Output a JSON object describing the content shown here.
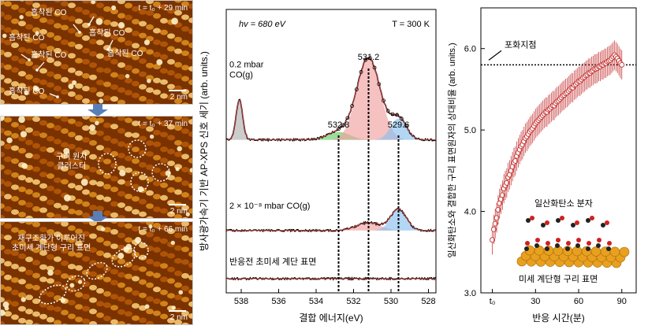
{
  "stm": {
    "panels": [
      {
        "time": "t = t₀ + 29 min",
        "scale": "2 nm",
        "labels": [
          "흡착된 CO",
          "흡착된 CO",
          "흡착된 CO",
          "흡착된 CO",
          "흡착된 CO",
          "흡착된 CO"
        ]
      },
      {
        "time": "t = t₀ + 37 min",
        "scale": "2 nm",
        "labels": [
          "구리 원자\n클러스터"
        ]
      },
      {
        "time": "t = t₀ + 66 min",
        "scale": "2 nm",
        "labels": [
          "재구조화가 이루어진\n초미세 계단형 구리 표면"
        ]
      }
    ]
  },
  "chart_data": [
    {
      "type": "line",
      "title": "",
      "xlabel": "결합 에너지(eV)",
      "ylabel": "방사광가속기 기반 AP-XPS 신호 세기 (arb. units.)",
      "xlim": [
        538.8,
        527.6
      ],
      "xticks": [
        538,
        536,
        534,
        532,
        530,
        528
      ],
      "annot_top_left": "hv = 680 eV",
      "annot_top_right": "T = 300 K",
      "peak_lines": [
        532.8,
        531.2,
        529.6
      ],
      "peak_labels": [
        "532.8",
        "531.2",
        "529.6"
      ],
      "series": [
        {
          "label": "0.2 mbar\nCO(g)",
          "baseline": 0.54,
          "peaks": [
            {
              "center": 538.1,
              "height": 0.14,
              "width": 0.18,
              "color": "#b0b0b0"
            },
            {
              "center": 532.8,
              "height": 0.028,
              "width": 0.6,
              "color": "#66cc66"
            },
            {
              "center": 531.2,
              "height": 0.29,
              "width": 0.62,
              "color": "#f0a0a0"
            },
            {
              "center": 529.6,
              "height": 0.075,
              "width": 0.42,
              "color": "#88c0ee"
            }
          ]
        },
        {
          "label": "2 × 10⁻⁸ mbar CO(g)",
          "baseline": 0.22,
          "peaks": [
            {
              "center": 531.2,
              "height": 0.028,
              "width": 0.62,
              "color": "#f0a0a0"
            },
            {
              "center": 529.6,
              "height": 0.075,
              "width": 0.42,
              "color": "#88c0ee"
            }
          ]
        },
        {
          "label": "반응전 초미세 계단 표면",
          "baseline": 0.05,
          "peaks": []
        }
      ]
    },
    {
      "type": "scatter",
      "title": "",
      "xlabel": "반응 시간(분)",
      "ylabel": "일산화탄소와 결합한 구리 표면원자의 상대비율 (arb. units.)",
      "xlim": [
        -8,
        100
      ],
      "ylim": [
        3.0,
        6.5
      ],
      "xticks": [
        "t₀",
        "30",
        "60",
        "90"
      ],
      "xtick_values": [
        0,
        30,
        60,
        90
      ],
      "yticks": [
        3.0,
        4.0,
        5.0,
        6.0
      ],
      "saturation_value": 5.8,
      "saturation_label": "포화지점",
      "inset_labels": [
        "일산화탄소 분자",
        "미세 계단형 구리 표면"
      ],
      "x": [
        0,
        1,
        2,
        3,
        4,
        5,
        6,
        7,
        8,
        9,
        10,
        11,
        12,
        13,
        14,
        15,
        16,
        17,
        18,
        19,
        20,
        21,
        22,
        23,
        24,
        25,
        26,
        27,
        28,
        29,
        30,
        31,
        32,
        33,
        34,
        35,
        36,
        37,
        38,
        39,
        40,
        41,
        42,
        43,
        44,
        45,
        46,
        47,
        48,
        49,
        50,
        51,
        52,
        53,
        54,
        55,
        56,
        57,
        58,
        59,
        60,
        61,
        62,
        63,
        64,
        65,
        66,
        67,
        68,
        69,
        70,
        71,
        72,
        73,
        74,
        75,
        76,
        77,
        78,
        79,
        80,
        81,
        82,
        83,
        84,
        85,
        86,
        87,
        88,
        89,
        90
      ],
      "y": [
        3.65,
        3.78,
        3.85,
        3.92,
        4.02,
        4.1,
        4.15,
        4.2,
        4.28,
        4.32,
        4.35,
        4.42,
        4.45,
        4.5,
        4.55,
        4.6,
        4.62,
        4.68,
        4.72,
        4.76,
        4.8,
        4.82,
        4.86,
        4.9,
        4.92,
        4.95,
        4.98,
        5.0,
        5.02,
        5.05,
        5.08,
        5.1,
        5.12,
        5.14,
        5.16,
        5.18,
        5.2,
        5.22,
        5.22,
        5.25,
        5.26,
        5.28,
        5.3,
        5.3,
        5.33,
        5.35,
        5.36,
        5.38,
        5.4,
        5.42,
        5.43,
        5.45,
        5.46,
        5.48,
        5.5,
        5.52,
        5.52,
        5.55,
        5.56,
        5.58,
        5.6,
        5.6,
        5.62,
        5.64,
        5.65,
        5.67,
        5.68,
        5.7,
        5.7,
        5.72,
        5.73,
        5.75,
        5.75,
        5.76,
        5.78,
        5.78,
        5.8,
        5.8,
        5.82,
        5.82,
        5.84,
        5.85,
        5.86,
        5.88,
        5.9,
        5.92,
        5.9,
        5.88,
        5.85,
        5.82,
        5.8
      ],
      "yerr": 0.18
    }
  ]
}
